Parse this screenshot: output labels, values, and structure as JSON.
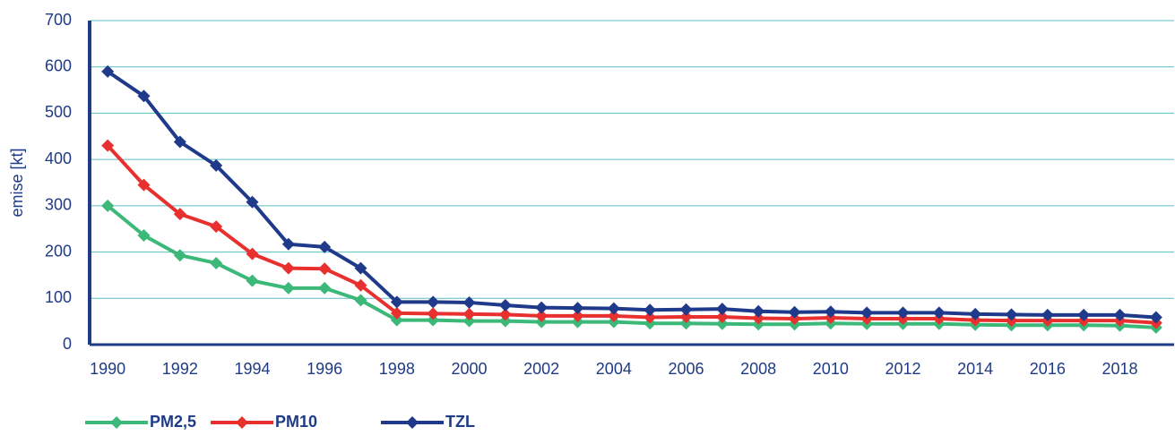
{
  "chart_data": {
    "type": "line",
    "y_label": "emise [kt]",
    "x": [
      1990,
      1991,
      1992,
      1993,
      1994,
      1995,
      1996,
      1997,
      1998,
      1999,
      2000,
      2001,
      2002,
      2003,
      2004,
      2005,
      2006,
      2007,
      2008,
      2009,
      2010,
      2011,
      2012,
      2013,
      2014,
      2015,
      2016,
      2017,
      2018,
      2019
    ],
    "xlim": [
      1989.5,
      2019.5
    ],
    "xticks": [
      1990,
      1992,
      1994,
      1996,
      1998,
      2000,
      2002,
      2004,
      2006,
      2008,
      2010,
      2012,
      2014,
      2016,
      2018
    ],
    "ylim": [
      0,
      700
    ],
    "yticks": [
      0,
      100,
      200,
      300,
      400,
      500,
      600,
      700
    ],
    "grid": true,
    "legend": "bottom",
    "series": [
      {
        "name": "PM2,5",
        "color": "#3cb878",
        "values": [
          300,
          236,
          193,
          176,
          138,
          122,
          122,
          96,
          53,
          53,
          51,
          51,
          49,
          49,
          49,
          46,
          46,
          45,
          44,
          44,
          46,
          45,
          45,
          45,
          43,
          42,
          42,
          42,
          41,
          37
        ]
      },
      {
        "name": "PM10",
        "color": "#e8312f",
        "values": [
          430,
          345,
          282,
          255,
          196,
          165,
          164,
          128,
          68,
          67,
          66,
          65,
          62,
          62,
          62,
          59,
          60,
          60,
          57,
          56,
          58,
          56,
          56,
          56,
          53,
          52,
          52,
          52,
          52,
          47
        ]
      },
      {
        "name": "TZL",
        "color": "#1f3a8a",
        "values": [
          590,
          537,
          438,
          387,
          308,
          217,
          211,
          165,
          92,
          92,
          91,
          85,
          80,
          79,
          78,
          75,
          76,
          77,
          72,
          70,
          71,
          69,
          69,
          69,
          66,
          65,
          64,
          64,
          64,
          59
        ]
      }
    ]
  }
}
